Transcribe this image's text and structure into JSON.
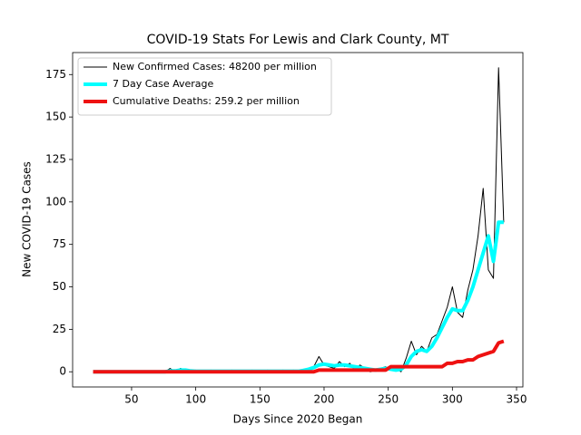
{
  "chart_data": {
    "type": "line",
    "title": "COVID-19 Stats For Lewis and Clark County, MT",
    "xlabel": "Days Since 2020 Began",
    "ylabel": "New COVID-19 Cases",
    "x": [
      20,
      24,
      28,
      32,
      36,
      40,
      44,
      48,
      52,
      56,
      60,
      64,
      68,
      72,
      76,
      80,
      84,
      88,
      92,
      96,
      100,
      104,
      108,
      112,
      116,
      120,
      124,
      128,
      132,
      136,
      140,
      144,
      148,
      152,
      156,
      160,
      164,
      168,
      172,
      176,
      180,
      184,
      188,
      192,
      196,
      200,
      204,
      208,
      212,
      216,
      220,
      224,
      228,
      232,
      236,
      240,
      244,
      248,
      252,
      256,
      260,
      264,
      268,
      272,
      276,
      280,
      284,
      288,
      292,
      296,
      300,
      304,
      308,
      312,
      316,
      320,
      324,
      328,
      332,
      336,
      340
    ],
    "series": [
      {
        "name": "New Confirmed Cases: 48200 per million",
        "color": "#000000",
        "width": 1,
        "values": [
          0,
          0,
          0,
          0,
          0,
          0,
          0,
          0,
          0,
          0,
          0,
          0,
          0,
          0,
          0,
          2,
          0,
          2,
          1,
          0,
          1,
          0,
          0,
          1,
          0,
          0,
          0,
          1,
          0,
          0,
          0,
          1,
          0,
          0,
          1,
          0,
          0,
          1,
          0,
          1,
          0,
          1,
          2,
          3,
          9,
          4,
          3,
          2,
          6,
          3,
          5,
          1,
          4,
          2,
          0,
          1,
          2,
          3,
          1,
          2,
          0,
          8,
          18,
          10,
          15,
          12,
          20,
          22,
          30,
          38,
          50,
          35,
          32,
          48,
          60,
          80,
          108,
          60,
          55,
          179,
          88
        ]
      },
      {
        "name": "7 Day Case Average",
        "color": "#00ffff",
        "width": 4,
        "values": [
          0,
          0,
          0,
          0,
          0,
          0,
          0,
          0,
          0,
          0,
          0,
          0,
          0,
          0,
          0,
          0.5,
          0.5,
          1,
          1,
          0.5,
          0.3,
          0.3,
          0.3,
          0.3,
          0.3,
          0.3,
          0.3,
          0.3,
          0.3,
          0.3,
          0.3,
          0.3,
          0.3,
          0.3,
          0.3,
          0.3,
          0.3,
          0.3,
          0.3,
          0.3,
          0.3,
          0.8,
          1.5,
          2.5,
          4,
          4.5,
          4,
          3.5,
          4,
          4,
          3.5,
          3,
          2.5,
          2,
          1.5,
          1,
          1.5,
          2,
          1.5,
          1,
          1.5,
          4,
          9,
          12,
          13,
          12,
          15,
          20,
          26,
          32,
          37,
          36,
          36,
          42,
          50,
          60,
          70,
          80,
          65,
          88,
          88
        ]
      },
      {
        "name": "Cumulative Deaths: 259.2 per million",
        "color": "#ee1111",
        "width": 4,
        "values": [
          0,
          0,
          0,
          0,
          0,
          0,
          0,
          0,
          0,
          0,
          0,
          0,
          0,
          0,
          0,
          0,
          0,
          0,
          0,
          0,
          0,
          0,
          0,
          0,
          0,
          0,
          0,
          0,
          0,
          0,
          0,
          0,
          0,
          0,
          0,
          0,
          0,
          0,
          0,
          0,
          0,
          0,
          0,
          0,
          1,
          1,
          1,
          1,
          1,
          1,
          1,
          1,
          1,
          1,
          1,
          1,
          1,
          1,
          3,
          3,
          3,
          3,
          3,
          3,
          3,
          3,
          3,
          3,
          3,
          5,
          5,
          6,
          6,
          7,
          7,
          9,
          10,
          11,
          12,
          17,
          18
        ]
      }
    ],
    "xlim": [
      4.05,
      354.95
    ],
    "xticks": [
      50,
      100,
      150,
      200,
      250,
      300,
      350
    ],
    "ylim": [
      -8.95,
      187.95
    ],
    "yticks": [
      0,
      25,
      50,
      75,
      100,
      125,
      150,
      175
    ],
    "legend": "upper left"
  }
}
